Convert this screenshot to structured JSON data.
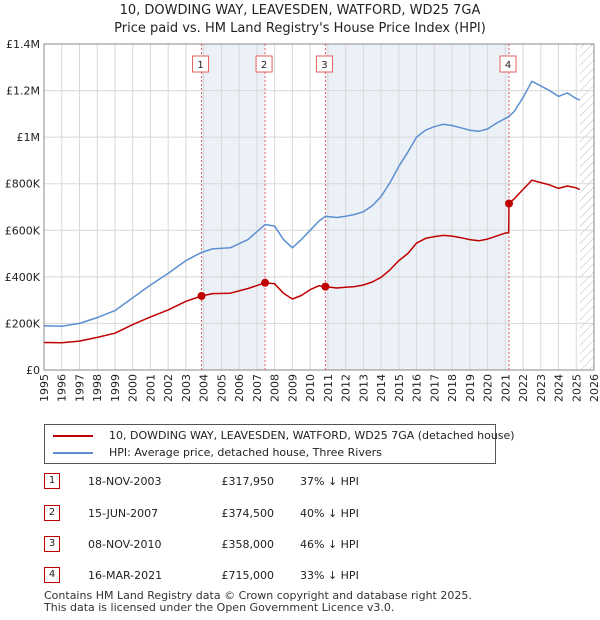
{
  "chart_data": {
    "type": "line",
    "title": "10, DOWDING WAY, LEAVESDEN, WATFORD, WD25 7GA",
    "subtitle": "Price paid vs. HM Land Registry's House Price Index (HPI)",
    "xlim": [
      1995,
      2026
    ],
    "ylim": [
      0,
      1400000
    ],
    "x_ticks": [
      "1995",
      "1996",
      "1997",
      "1998",
      "1999",
      "2000",
      "2001",
      "2002",
      "2003",
      "2004",
      "2005",
      "2006",
      "2007",
      "2008",
      "2009",
      "2010",
      "2011",
      "2012",
      "2013",
      "2014",
      "2015",
      "2016",
      "2017",
      "2018",
      "2019",
      "2020",
      "2021",
      "2022",
      "2023",
      "2024",
      "2025",
      "2026"
    ],
    "y_ticks": [
      {
        "value": 0,
        "label": "£0"
      },
      {
        "value": 200000,
        "label": "£200K"
      },
      {
        "value": 400000,
        "label": "£400K"
      },
      {
        "value": 600000,
        "label": "£600K"
      },
      {
        "value": 800000,
        "label": "£800K"
      },
      {
        "value": 1000000,
        "label": "£1M"
      },
      {
        "value": 1200000,
        "label": "£1.2M"
      },
      {
        "value": 1400000,
        "label": "£1.4M"
      }
    ],
    "grid": true,
    "series": [
      {
        "name": "10, DOWDING WAY, LEAVESDEN, WATFORD, WD25 7GA (detached house)",
        "color": "#c00000",
        "points": [
          [
            1995.0,
            118000
          ],
          [
            1996.0,
            117000
          ],
          [
            1997.0,
            124000
          ],
          [
            1998.0,
            140000
          ],
          [
            1999.0,
            158000
          ],
          [
            2000.0,
            195000
          ],
          [
            2001.0,
            228000
          ],
          [
            2002.0,
            258000
          ],
          [
            2003.0,
            295000
          ],
          [
            2003.88,
            317950
          ],
          [
            2004.5,
            328000
          ],
          [
            2005.5,
            330000
          ],
          [
            2006.5,
            350000
          ],
          [
            2007.46,
            374500
          ],
          [
            2008.0,
            370000
          ],
          [
            2008.5,
            330000
          ],
          [
            2009.0,
            305000
          ],
          [
            2009.5,
            320000
          ],
          [
            2010.0,
            345000
          ],
          [
            2010.5,
            362000
          ],
          [
            2010.86,
            358000
          ],
          [
            2011.5,
            352000
          ],
          [
            2012.0,
            355000
          ],
          [
            2012.5,
            358000
          ],
          [
            2013.0,
            365000
          ],
          [
            2013.5,
            378000
          ],
          [
            2014.0,
            398000
          ],
          [
            2014.5,
            430000
          ],
          [
            2015.0,
            470000
          ],
          [
            2015.5,
            500000
          ],
          [
            2016.0,
            545000
          ],
          [
            2016.5,
            565000
          ],
          [
            2017.0,
            573000
          ],
          [
            2017.5,
            578000
          ],
          [
            2018.0,
            575000
          ],
          [
            2018.5,
            568000
          ],
          [
            2019.0,
            560000
          ],
          [
            2019.5,
            555000
          ],
          [
            2020.0,
            562000
          ],
          [
            2020.5,
            575000
          ],
          [
            2021.0,
            588000
          ],
          [
            2021.19,
            590000
          ],
          [
            2021.21,
            715000
          ],
          [
            2021.5,
            735000
          ],
          [
            2022.0,
            775000
          ],
          [
            2022.5,
            815000
          ],
          [
            2023.0,
            805000
          ],
          [
            2023.5,
            795000
          ],
          [
            2024.0,
            780000
          ],
          [
            2024.5,
            790000
          ],
          [
            2025.0,
            782000
          ],
          [
            2025.2,
            775000
          ]
        ]
      },
      {
        "name": "HPI: Average price, detached house, Three Rivers",
        "color": "#5b8fd0",
        "points": [
          [
            1995.0,
            190000
          ],
          [
            1996.0,
            188000
          ],
          [
            1997.0,
            200000
          ],
          [
            1998.0,
            225000
          ],
          [
            1999.0,
            255000
          ],
          [
            2000.0,
            310000
          ],
          [
            2001.0,
            365000
          ],
          [
            2002.0,
            415000
          ],
          [
            2003.0,
            470000
          ],
          [
            2003.88,
            505000
          ],
          [
            2004.5,
            520000
          ],
          [
            2005.5,
            525000
          ],
          [
            2006.5,
            560000
          ],
          [
            2007.46,
            625000
          ],
          [
            2008.0,
            618000
          ],
          [
            2008.5,
            560000
          ],
          [
            2009.0,
            525000
          ],
          [
            2009.5,
            560000
          ],
          [
            2010.0,
            600000
          ],
          [
            2010.5,
            640000
          ],
          [
            2010.86,
            660000
          ],
          [
            2011.5,
            655000
          ],
          [
            2012.0,
            660000
          ],
          [
            2012.5,
            668000
          ],
          [
            2013.0,
            680000
          ],
          [
            2013.5,
            705000
          ],
          [
            2014.0,
            745000
          ],
          [
            2014.5,
            805000
          ],
          [
            2015.0,
            875000
          ],
          [
            2015.5,
            935000
          ],
          [
            2016.0,
            1000000
          ],
          [
            2016.5,
            1030000
          ],
          [
            2017.0,
            1045000
          ],
          [
            2017.5,
            1055000
          ],
          [
            2018.0,
            1050000
          ],
          [
            2018.5,
            1040000
          ],
          [
            2019.0,
            1030000
          ],
          [
            2019.5,
            1025000
          ],
          [
            2020.0,
            1035000
          ],
          [
            2020.5,
            1060000
          ],
          [
            2021.0,
            1080000
          ],
          [
            2021.19,
            1088000
          ],
          [
            2021.5,
            1110000
          ],
          [
            2022.0,
            1170000
          ],
          [
            2022.5,
            1240000
          ],
          [
            2023.0,
            1220000
          ],
          [
            2023.5,
            1200000
          ],
          [
            2024.0,
            1175000
          ],
          [
            2024.5,
            1190000
          ],
          [
            2025.0,
            1165000
          ],
          [
            2025.2,
            1160000
          ]
        ]
      }
    ],
    "sales": [
      {
        "n": "1",
        "x": 2003.88,
        "y": 317950
      },
      {
        "n": "2",
        "x": 2007.46,
        "y": 374500
      },
      {
        "n": "3",
        "x": 2010.86,
        "y": 358000
      },
      {
        "n": "4",
        "x": 2021.21,
        "y": 715000
      }
    ],
    "forecast_start": 2025.2,
    "shade_color": "#dde5f3",
    "grid_color": "#d8d8d8",
    "vline_color": "#e06060"
  },
  "legend": [
    {
      "label": "10, DOWDING WAY, LEAVESDEN, WATFORD, WD25 7GA (detached house)",
      "color": "#c00000"
    },
    {
      "label": "HPI: Average price, detached house, Three Rivers",
      "color": "#5b8fd0"
    }
  ],
  "transactions": [
    {
      "n": "1",
      "date": "18-NOV-2003",
      "price": "£317,950",
      "hpi": "37% ↓ HPI"
    },
    {
      "n": "2",
      "date": "15-JUN-2007",
      "price": "£374,500",
      "hpi": "40% ↓ HPI"
    },
    {
      "n": "3",
      "date": "08-NOV-2010",
      "price": "£358,000",
      "hpi": "46% ↓ HPI"
    },
    {
      "n": "4",
      "date": "16-MAR-2021",
      "price": "£715,000",
      "hpi": "33% ↓ HPI"
    }
  ],
  "footer": {
    "line1": "Contains HM Land Registry data © Crown copyright and database right 2025.",
    "line2": "This data is licensed under the Open Government Licence v3.0."
  }
}
